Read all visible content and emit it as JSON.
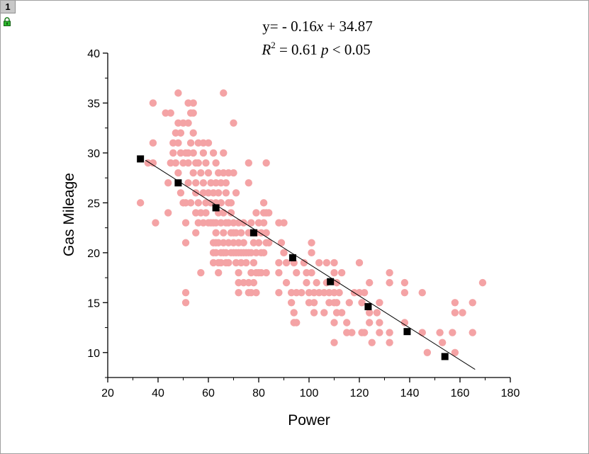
{
  "window": {
    "tab_label": "1",
    "lock_icon": "lock-icon"
  },
  "chart_data": {
    "type": "scatter",
    "equation_line": "y= - 0.16x + 34.87",
    "stats_line": "R2 = 0.61 p < 0.05",
    "equation": {
      "prefix": "y= - 0.16",
      "var": "x",
      "suffix": " + 34.87"
    },
    "stats": {
      "r": "R",
      "sup": "2",
      "mid": " = 0.61 ",
      "p": "p",
      "suffix": " < 0.05"
    },
    "xlabel": "Power",
    "ylabel": "Gas Mileage",
    "xlim": [
      20,
      180
    ],
    "ylim": [
      7.5,
      40
    ],
    "xticks": [
      20,
      40,
      60,
      80,
      100,
      120,
      140,
      160,
      180
    ],
    "yticks": [
      10,
      15,
      20,
      25,
      30,
      35,
      40
    ],
    "grid": false,
    "point_color": "#f4a3a5",
    "line_color": "#000000",
    "fit_line": {
      "slope": -0.16,
      "intercept": 34.87,
      "x_start": 35,
      "x_end": 166
    },
    "binned_means": {
      "x": [
        33,
        48,
        63,
        78,
        93.5,
        108.5,
        123.5,
        139,
        154
      ],
      "y": [
        29.4,
        27,
        24.5,
        22,
        19.5,
        17.1,
        14.6,
        12.1,
        9.6
      ]
    },
    "points": [
      [
        33,
        25
      ],
      [
        36,
        29
      ],
      [
        38,
        35
      ],
      [
        38,
        31
      ],
      [
        38,
        29
      ],
      [
        39,
        23
      ],
      [
        43,
        34
      ],
      [
        44,
        24
      ],
      [
        44,
        27
      ],
      [
        45,
        29
      ],
      [
        45,
        34
      ],
      [
        46,
        31
      ],
      [
        46,
        30
      ],
      [
        47,
        32
      ],
      [
        47,
        29
      ],
      [
        48,
        33
      ],
      [
        48,
        31
      ],
      [
        48,
        28
      ],
      [
        48,
        36
      ],
      [
        49,
        30
      ],
      [
        49,
        26
      ],
      [
        49,
        32
      ],
      [
        50,
        33
      ],
      [
        50,
        29
      ],
      [
        50,
        25
      ],
      [
        51,
        30
      ],
      [
        51,
        25
      ],
      [
        51,
        23
      ],
      [
        51,
        16
      ],
      [
        51,
        15
      ],
      [
        51,
        21
      ],
      [
        52,
        35
      ],
      [
        52,
        33
      ],
      [
        52,
        29
      ],
      [
        52,
        27
      ],
      [
        52,
        30
      ],
      [
        53,
        34
      ],
      [
        53,
        31
      ],
      [
        53,
        25
      ],
      [
        54,
        35
      ],
      [
        54,
        34
      ],
      [
        54,
        32
      ],
      [
        54,
        30
      ],
      [
        54,
        28
      ],
      [
        55,
        29
      ],
      [
        55,
        27
      ],
      [
        55,
        26
      ],
      [
        55,
        24
      ],
      [
        55,
        22
      ],
      [
        56,
        31
      ],
      [
        56,
        29
      ],
      [
        56,
        25
      ],
      [
        56,
        23
      ],
      [
        57,
        28
      ],
      [
        57,
        24
      ],
      [
        57,
        18
      ],
      [
        58,
        31
      ],
      [
        58,
        30
      ],
      [
        58,
        27
      ],
      [
        58,
        26
      ],
      [
        58,
        23
      ],
      [
        59,
        29
      ],
      [
        59,
        25
      ],
      [
        59,
        24
      ],
      [
        60,
        31
      ],
      [
        60,
        28
      ],
      [
        60,
        26
      ],
      [
        60,
        23
      ],
      [
        61,
        27
      ],
      [
        61,
        25
      ],
      [
        61,
        23
      ],
      [
        62,
        30
      ],
      [
        62,
        26
      ],
      [
        62,
        23
      ],
      [
        62,
        21
      ],
      [
        62,
        20
      ],
      [
        62,
        19
      ],
      [
        63,
        29
      ],
      [
        63,
        27
      ],
      [
        63,
        25
      ],
      [
        63,
        23
      ],
      [
        63,
        22
      ],
      [
        63,
        21
      ],
      [
        63,
        20
      ],
      [
        64,
        28
      ],
      [
        64,
        26
      ],
      [
        64,
        24
      ],
      [
        64,
        21
      ],
      [
        64,
        19
      ],
      [
        64,
        18
      ],
      [
        65,
        27
      ],
      [
        65,
        25
      ],
      [
        65,
        23
      ],
      [
        65,
        20
      ],
      [
        65,
        19
      ],
      [
        66,
        36
      ],
      [
        66,
        30
      ],
      [
        66,
        28
      ],
      [
        66,
        24
      ],
      [
        66,
        22
      ],
      [
        66,
        21
      ],
      [
        66,
        20
      ],
      [
        67,
        27
      ],
      [
        67,
        26
      ],
      [
        67,
        23
      ],
      [
        67,
        20
      ],
      [
        67,
        19
      ],
      [
        68,
        28
      ],
      [
        68,
        25
      ],
      [
        68,
        23
      ],
      [
        68,
        21
      ],
      [
        68,
        19
      ],
      [
        69,
        25
      ],
      [
        69,
        24
      ],
      [
        69,
        22
      ],
      [
        69,
        20
      ],
      [
        70,
        33
      ],
      [
        70,
        28
      ],
      [
        70,
        23
      ],
      [
        70,
        22
      ],
      [
        70,
        21
      ],
      [
        70,
        20
      ],
      [
        71,
        26
      ],
      [
        71,
        22
      ],
      [
        71,
        20
      ],
      [
        71,
        19
      ],
      [
        72,
        23
      ],
      [
        72,
        21
      ],
      [
        72,
        20
      ],
      [
        72,
        18
      ],
      [
        72,
        17
      ],
      [
        72,
        16
      ],
      [
        73,
        22
      ],
      [
        73,
        20
      ],
      [
        73,
        19
      ],
      [
        74,
        23
      ],
      [
        74,
        21
      ],
      [
        74,
        20
      ],
      [
        74,
        17
      ],
      [
        75,
        20
      ],
      [
        75,
        19
      ],
      [
        76,
        29
      ],
      [
        76,
        27
      ],
      [
        76,
        22
      ],
      [
        76,
        20
      ],
      [
        76,
        17
      ],
      [
        76,
        16
      ],
      [
        77,
        23
      ],
      [
        77,
        20
      ],
      [
        77,
        18
      ],
      [
        77,
        16
      ],
      [
        78,
        22
      ],
      [
        78,
        21
      ],
      [
        78,
        19
      ],
      [
        78,
        17
      ],
      [
        79,
        24
      ],
      [
        79,
        22
      ],
      [
        79,
        20
      ],
      [
        79,
        18
      ],
      [
        79,
        16
      ],
      [
        80,
        23
      ],
      [
        80,
        21
      ],
      [
        80,
        18
      ],
      [
        81,
        22
      ],
      [
        81,
        20
      ],
      [
        81,
        18
      ],
      [
        82,
        25
      ],
      [
        82,
        24
      ],
      [
        82,
        23
      ],
      [
        82,
        20
      ],
      [
        83,
        29
      ],
      [
        83,
        24
      ],
      [
        83,
        22
      ],
      [
        83,
        21
      ],
      [
        83,
        18
      ],
      [
        84,
        24
      ],
      [
        84,
        21
      ],
      [
        88,
        23
      ],
      [
        88,
        18
      ],
      [
        88,
        16
      ],
      [
        88,
        19
      ],
      [
        89,
        21
      ],
      [
        90,
        23
      ],
      [
        90,
        20
      ],
      [
        91,
        19
      ],
      [
        91,
        17
      ],
      [
        93,
        16
      ],
      [
        93,
        15
      ],
      [
        94,
        19
      ],
      [
        94,
        13
      ],
      [
        94,
        14
      ],
      [
        95,
        18
      ],
      [
        95,
        16
      ],
      [
        95,
        13
      ],
      [
        97,
        16
      ],
      [
        98,
        19
      ],
      [
        99,
        18
      ],
      [
        99,
        17
      ],
      [
        100,
        15
      ],
      [
        100,
        16
      ],
      [
        101,
        21
      ],
      [
        101,
        20
      ],
      [
        101,
        18
      ],
      [
        102,
        16
      ],
      [
        102,
        15
      ],
      [
        102,
        14
      ],
      [
        103,
        17
      ],
      [
        104,
        19
      ],
      [
        104,
        16
      ],
      [
        106,
        16
      ],
      [
        106,
        14
      ],
      [
        107,
        19
      ],
      [
        107,
        17
      ],
      [
        108,
        15
      ],
      [
        108,
        16
      ],
      [
        110,
        19
      ],
      [
        110,
        18
      ],
      [
        110,
        16
      ],
      [
        110,
        15
      ],
      [
        110,
        13
      ],
      [
        110,
        11
      ],
      [
        111,
        17
      ],
      [
        111,
        15
      ],
      [
        111,
        14
      ],
      [
        112,
        16
      ],
      [
        113,
        18
      ],
      [
        113,
        14
      ],
      [
        115,
        13
      ],
      [
        115,
        12
      ],
      [
        116,
        15
      ],
      [
        117,
        12
      ],
      [
        118,
        16
      ],
      [
        120,
        19
      ],
      [
        120,
        16
      ],
      [
        121,
        15
      ],
      [
        121,
        12
      ],
      [
        122,
        16
      ],
      [
        122,
        12
      ],
      [
        124,
        17
      ],
      [
        124,
        14
      ],
      [
        124,
        13
      ],
      [
        125,
        11
      ],
      [
        127,
        14
      ],
      [
        128,
        15
      ],
      [
        128,
        13
      ],
      [
        128,
        12
      ],
      [
        132,
        18
      ],
      [
        132,
        17
      ],
      [
        132,
        12
      ],
      [
        132,
        11
      ],
      [
        138,
        17
      ],
      [
        138,
        16
      ],
      [
        138,
        13
      ],
      [
        145,
        16
      ],
      [
        145,
        12
      ],
      [
        147,
        10
      ],
      [
        152,
        12
      ],
      [
        153,
        11
      ],
      [
        157,
        12
      ],
      [
        158,
        15
      ],
      [
        158,
        14
      ],
      [
        158,
        10
      ],
      [
        161,
        14
      ],
      [
        165,
        15
      ],
      [
        165,
        12
      ],
      [
        169,
        17
      ]
    ]
  }
}
